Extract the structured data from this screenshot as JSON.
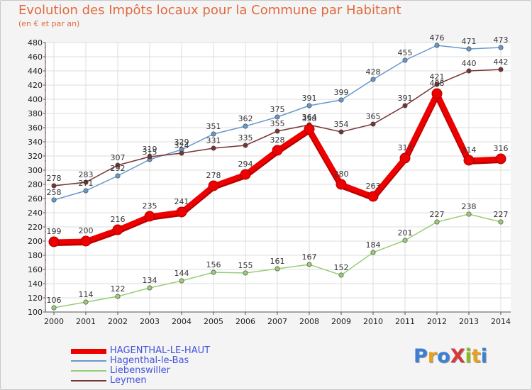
{
  "title": "Evolution des Impôts locaux pour la Commune par Habitant",
  "subtitle": "(en € et par an)",
  "logo": "ProXiti",
  "chart_data": {
    "type": "line",
    "title": "Evolution des Impôts locaux pour la Commune par Habitant",
    "subtitle": "(en € et par an)",
    "xlabel": "",
    "ylabel": "",
    "categories": [
      "2000",
      "2001",
      "2002",
      "2003",
      "2004",
      "2005",
      "2006",
      "2007",
      "2008",
      "2009",
      "2010",
      "2011",
      "2012",
      "2013",
      "2014"
    ],
    "ylim": [
      100,
      480
    ],
    "ytick_step": 20,
    "grid": true,
    "legend_position": "bottom-left",
    "series": [
      {
        "name": "HAGENTHAL-LE-HAUT",
        "color": "#ee0000",
        "values": [
          199,
          200,
          216,
          235,
          241,
          278,
          294,
          328,
          358,
          280,
          263,
          317,
          408,
          314,
          316
        ]
      },
      {
        "name": "Hagenthal-le-Bas",
        "color": "#6699cc",
        "values": [
          258,
          271,
          292,
          315,
          329,
          351,
          362,
          375,
          391,
          399,
          428,
          455,
          476,
          471,
          473
        ]
      },
      {
        "name": "Liebenswiller",
        "color": "#99cc77",
        "values": [
          106,
          114,
          122,
          134,
          144,
          156,
          155,
          161,
          167,
          152,
          184,
          201,
          227,
          238,
          227
        ]
      },
      {
        "name": "Leymen",
        "color": "#773333",
        "values": [
          278,
          283,
          307,
          319,
          324,
          331,
          335,
          355,
          364,
          354,
          365,
          391,
          421,
          440,
          442
        ]
      }
    ]
  }
}
